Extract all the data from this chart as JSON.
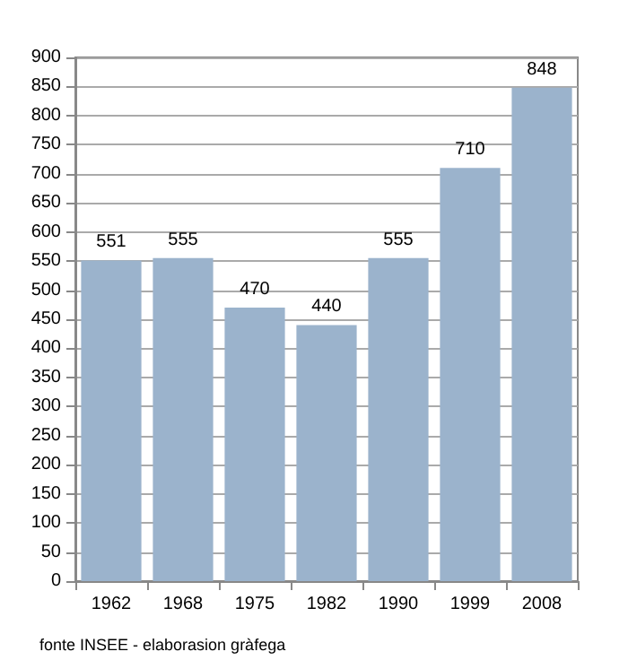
{
  "chart_data": {
    "type": "bar",
    "categories": [
      "1962",
      "1968",
      "1975",
      "1982",
      "1990",
      "1999",
      "2008"
    ],
    "values": [
      551,
      555,
      470,
      440,
      555,
      710,
      848
    ],
    "color": "#9bb3cc",
    "ylim": [
      0,
      900
    ],
    "yticks": [
      0,
      50,
      100,
      150,
      200,
      250,
      300,
      350,
      400,
      450,
      500,
      550,
      600,
      650,
      700,
      750,
      800,
      850,
      900
    ],
    "grid": "y",
    "data_labels": true,
    "annotations": [
      "fonte INSEE - elaborasion gràfega"
    ]
  }
}
